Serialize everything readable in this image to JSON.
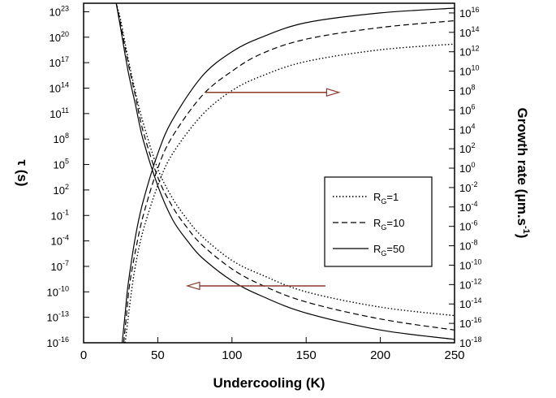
{
  "chart_data": {
    "type": "line",
    "xlabel": "Undercooling (K)",
    "ylabel_left": "τ (s)",
    "ylabel_right": "Growth rate (μm.s-1)",
    "xlim": [
      0,
      250
    ],
    "xticks": [
      0,
      50,
      100,
      150,
      200,
      250
    ],
    "y_left": {
      "scale": "log",
      "range_exp": [
        -16,
        24
      ],
      "tick_exps": [
        23,
        20,
        17,
        14,
        11,
        8,
        5,
        2,
        -1,
        -4,
        -7,
        -10,
        -13,
        -16
      ]
    },
    "y_right": {
      "scale": "log",
      "range_exp": [
        -18,
        17
      ],
      "tick_exps": [
        16,
        14,
        12,
        10,
        8,
        6,
        4,
        2,
        0,
        -2,
        -4,
        -6,
        -8,
        -10,
        -12,
        -14,
        -16,
        -18
      ]
    },
    "legend": {
      "placement": "right-middle",
      "entries": [
        {
          "prefix": "R",
          "sub": "G",
          "suffix": "=1",
          "style": "dotted"
        },
        {
          "prefix": "R",
          "sub": "G",
          "suffix": "=10",
          "style": "dashed"
        },
        {
          "prefix": "R",
          "sub": "G",
          "suffix": "=50",
          "style": "solid"
        }
      ]
    },
    "series": [
      {
        "group": "tau",
        "axis": "left",
        "style": "solid",
        "x": [
          22,
          25,
          30,
          35,
          40,
          50,
          60,
          70,
          80,
          100,
          120,
          150,
          200,
          250
        ],
        "y_exp": [
          24,
          21,
          16,
          12,
          8,
          2.5,
          -1.5,
          -4,
          -6,
          -8.7,
          -10.5,
          -12.5,
          -14.5,
          -15.6
        ]
      },
      {
        "group": "tau",
        "axis": "left",
        "style": "dashed",
        "x": [
          22,
          25,
          30,
          35,
          40,
          50,
          60,
          70,
          80,
          100,
          120,
          150,
          200,
          250
        ],
        "y_exp": [
          24,
          21.5,
          17,
          13,
          9,
          3.5,
          0,
          -2.5,
          -4.5,
          -7.3,
          -9.2,
          -11.2,
          -13.2,
          -14.5
        ]
      },
      {
        "group": "tau",
        "axis": "left",
        "style": "dotted",
        "x": [
          22,
          25,
          30,
          35,
          40,
          50,
          60,
          70,
          80,
          100,
          120,
          150,
          200,
          250
        ],
        "y_exp": [
          24,
          22,
          17.5,
          13.5,
          10,
          4.5,
          1,
          -1.5,
          -3.5,
          -6.3,
          -8,
          -10,
          -11.8,
          -12.8
        ]
      },
      {
        "group": "growth",
        "axis": "right",
        "style": "solid",
        "x": [
          26,
          28,
          30,
          35,
          40,
          50,
          60,
          80,
          100,
          120,
          150,
          200,
          250
        ],
        "y_exp": [
          -18,
          -15,
          -12,
          -7,
          -3.5,
          1.5,
          5,
          9.5,
          12,
          13.5,
          15,
          16,
          16.5
        ]
      },
      {
        "group": "growth",
        "axis": "right",
        "style": "dashed",
        "x": [
          27,
          29,
          31,
          35,
          40,
          50,
          60,
          80,
          100,
          120,
          150,
          200,
          250
        ],
        "y_exp": [
          -18,
          -15,
          -12,
          -8.5,
          -5,
          0,
          3.3,
          7.5,
          10,
          11.8,
          13.3,
          14.5,
          15.2
        ]
      },
      {
        "group": "growth",
        "axis": "right",
        "style": "dotted",
        "x": [
          28,
          30,
          32,
          35,
          40,
          50,
          60,
          80,
          100,
          120,
          150,
          200,
          250
        ],
        "y_exp": [
          -18,
          -15.5,
          -13,
          -10,
          -6.5,
          -1.8,
          1.5,
          5.5,
          8,
          9.5,
          11,
          12.2,
          12.8
        ]
      }
    ],
    "annotations": [
      {
        "name": "arrow-right",
        "from_x": 82,
        "to_x": 172,
        "axis": "left",
        "y_exp": 13.5,
        "color": "#8b3a2a"
      },
      {
        "name": "arrow-left",
        "from_x": 163,
        "to_x": 70,
        "axis": "left",
        "y_exp": -9.3,
        "color": "#8b3a2a"
      }
    ]
  }
}
